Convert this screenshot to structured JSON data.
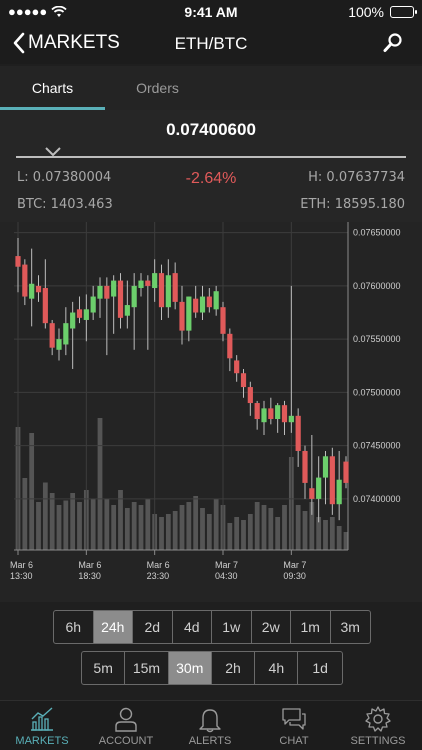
{
  "status_bar": {
    "time": "9:41 AM",
    "battery": "100%"
  },
  "nav": {
    "back_label": "MARKETS",
    "title": "ETH/BTC"
  },
  "tabs": [
    {
      "label": "Charts"
    },
    {
      "label": "Orders"
    }
  ],
  "summary": {
    "price": "0.07400600",
    "low": "L: 0.07380004",
    "change": "-2.64%",
    "high": "H: 0.07637734",
    "btc_volume": "BTC: 1403.463",
    "eth_volume": "ETH: 18595.180"
  },
  "chart_data": {
    "type": "candlestick",
    "y_ticks": [
      "0.07650000",
      "0.07600000",
      "0.07550000",
      "0.07500000",
      "0.07450000",
      "0.07400000"
    ],
    "ylim": [
      0.07352,
      0.0766
    ],
    "x_ticks": [
      {
        "line1": "Mar 6",
        "line2": "13:30"
      },
      {
        "line1": "Mar 6",
        "line2": "18:30"
      },
      {
        "line1": "Mar 6",
        "line2": "23:30"
      },
      {
        "line1": "Mar 7",
        "line2": "04:30"
      },
      {
        "line1": "Mar 7",
        "line2": "09:30"
      }
    ],
    "x_tick_index": [
      0,
      10,
      20,
      30,
      40
    ],
    "colors": {
      "up": "#6ccf6c",
      "down": "#e05a5a",
      "volume": "#555555",
      "grid": "#3c3c3c"
    },
    "candles": [
      {
        "o": 0.07628,
        "h": 0.07645,
        "l": 0.07594,
        "c": 0.07618
      },
      {
        "o": 0.0762,
        "h": 0.07625,
        "l": 0.07582,
        "c": 0.0759
      },
      {
        "o": 0.07588,
        "h": 0.07635,
        "l": 0.07562,
        "c": 0.07602
      },
      {
        "o": 0.076,
        "h": 0.0761,
        "l": 0.07585,
        "c": 0.07594
      },
      {
        "o": 0.07598,
        "h": 0.07625,
        "l": 0.0756,
        "c": 0.07565
      },
      {
        "o": 0.07565,
        "h": 0.07568,
        "l": 0.07535,
        "c": 0.07542
      },
      {
        "o": 0.0754,
        "h": 0.0756,
        "l": 0.0753,
        "c": 0.0755
      },
      {
        "o": 0.07545,
        "h": 0.0758,
        "l": 0.07535,
        "c": 0.07565
      },
      {
        "o": 0.0756,
        "h": 0.07585,
        "l": 0.07522,
        "c": 0.07575
      },
      {
        "o": 0.07578,
        "h": 0.0759,
        "l": 0.07565,
        "c": 0.0757
      },
      {
        "o": 0.07568,
        "h": 0.07592,
        "l": 0.07548,
        "c": 0.07578
      },
      {
        "o": 0.07575,
        "h": 0.076,
        "l": 0.07568,
        "c": 0.0759
      },
      {
        "o": 0.07588,
        "h": 0.07608,
        "l": 0.0757,
        "c": 0.076
      },
      {
        "o": 0.076,
        "h": 0.07608,
        "l": 0.07535,
        "c": 0.07588
      },
      {
        "o": 0.0759,
        "h": 0.0761,
        "l": 0.07555,
        "c": 0.07605
      },
      {
        "o": 0.07605,
        "h": 0.07612,
        "l": 0.0756,
        "c": 0.0757
      },
      {
        "o": 0.07572,
        "h": 0.07605,
        "l": 0.0756,
        "c": 0.07582
      },
      {
        "o": 0.0758,
        "h": 0.07612,
        "l": 0.0754,
        "c": 0.076
      },
      {
        "o": 0.07598,
        "h": 0.07612,
        "l": 0.0759,
        "c": 0.07605
      },
      {
        "o": 0.07605,
        "h": 0.0761,
        "l": 0.0754,
        "c": 0.076
      },
      {
        "o": 0.07598,
        "h": 0.07625,
        "l": 0.07585,
        "c": 0.07612
      },
      {
        "o": 0.07612,
        "h": 0.0762,
        "l": 0.07568,
        "c": 0.0758
      },
      {
        "o": 0.0758,
        "h": 0.07625,
        "l": 0.0757,
        "c": 0.0761
      },
      {
        "o": 0.07612,
        "h": 0.07622,
        "l": 0.07578,
        "c": 0.07585
      },
      {
        "o": 0.07585,
        "h": 0.076,
        "l": 0.07545,
        "c": 0.07558
      },
      {
        "o": 0.07558,
        "h": 0.0759,
        "l": 0.07548,
        "c": 0.0759
      },
      {
        "o": 0.07588,
        "h": 0.076,
        "l": 0.0757,
        "c": 0.07575
      },
      {
        "o": 0.07575,
        "h": 0.076,
        "l": 0.07568,
        "c": 0.0759
      },
      {
        "o": 0.0759,
        "h": 0.07598,
        "l": 0.07575,
        "c": 0.0758
      },
      {
        "o": 0.07578,
        "h": 0.076,
        "l": 0.07572,
        "c": 0.07595
      },
      {
        "o": 0.0758,
        "h": 0.07585,
        "l": 0.07548,
        "c": 0.07555
      },
      {
        "o": 0.07555,
        "h": 0.0756,
        "l": 0.0752,
        "c": 0.07532
      },
      {
        "o": 0.0753,
        "h": 0.07535,
        "l": 0.0751,
        "c": 0.07518
      },
      {
        "o": 0.07518,
        "h": 0.07522,
        "l": 0.07495,
        "c": 0.07505
      },
      {
        "o": 0.07505,
        "h": 0.0751,
        "l": 0.07478,
        "c": 0.0749
      },
      {
        "o": 0.0749,
        "h": 0.07492,
        "l": 0.07465,
        "c": 0.07475
      },
      {
        "o": 0.07472,
        "h": 0.07492,
        "l": 0.0746,
        "c": 0.07485
      },
      {
        "o": 0.07485,
        "h": 0.07495,
        "l": 0.0747,
        "c": 0.07475
      },
      {
        "o": 0.07475,
        "h": 0.0749,
        "l": 0.07462,
        "c": 0.07488
      },
      {
        "o": 0.07488,
        "h": 0.07492,
        "l": 0.0746,
        "c": 0.07472
      },
      {
        "o": 0.07472,
        "h": 0.076,
        "l": 0.07462,
        "c": 0.07478
      },
      {
        "o": 0.07478,
        "h": 0.07485,
        "l": 0.0743,
        "c": 0.07445
      },
      {
        "o": 0.07445,
        "h": 0.0745,
        "l": 0.074,
        "c": 0.07415
      },
      {
        "o": 0.0741,
        "h": 0.0746,
        "l": 0.07385,
        "c": 0.074
      },
      {
        "o": 0.074,
        "h": 0.0744,
        "l": 0.07378,
        "c": 0.0742
      },
      {
        "o": 0.0742,
        "h": 0.07445,
        "l": 0.07395,
        "c": 0.0744
      },
      {
        "o": 0.0744,
        "h": 0.07448,
        "l": 0.07385,
        "c": 0.07395
      },
      {
        "o": 0.07395,
        "h": 0.07445,
        "l": 0.0738,
        "c": 0.07418
      },
      {
        "o": 0.07435,
        "h": 0.0744,
        "l": 0.0741,
        "c": 0.07415
      }
    ],
    "volume_max": 100,
    "volumes": [
      82,
      48,
      78,
      32,
      45,
      38,
      30,
      33,
      38,
      32,
      40,
      34,
      88,
      34,
      30,
      40,
      28,
      32,
      30,
      34,
      24,
      22,
      24,
      26,
      30,
      32,
      36,
      28,
      24,
      34,
      30,
      18,
      22,
      20,
      24,
      32,
      30,
      28,
      22,
      30,
      62,
      30,
      26,
      32,
      22,
      20,
      22,
      16,
      12
    ]
  },
  "periods_row1": [
    {
      "label": "6h",
      "selected": false
    },
    {
      "label": "24h",
      "selected": true
    },
    {
      "label": "2d",
      "selected": false
    },
    {
      "label": "4d",
      "selected": false
    },
    {
      "label": "1w",
      "selected": false
    },
    {
      "label": "2w",
      "selected": false
    },
    {
      "label": "1m",
      "selected": false
    },
    {
      "label": "3m",
      "selected": false
    }
  ],
  "periods_row2": [
    {
      "label": "5m",
      "selected": false
    },
    {
      "label": "15m",
      "selected": false
    },
    {
      "label": "30m",
      "selected": true
    },
    {
      "label": "2h",
      "selected": false
    },
    {
      "label": "4h",
      "selected": false
    },
    {
      "label": "1d",
      "selected": false
    }
  ],
  "tabbar": [
    {
      "label": "MARKETS",
      "icon": "chart-icon",
      "active": true
    },
    {
      "label": "ACCOUNT",
      "icon": "person-icon",
      "active": false
    },
    {
      "label": "ALERTS",
      "icon": "bell-icon",
      "active": false
    },
    {
      "label": "CHAT",
      "icon": "chat-icon",
      "active": false
    },
    {
      "label": "SETTINGS",
      "icon": "gear-icon",
      "active": false
    }
  ]
}
